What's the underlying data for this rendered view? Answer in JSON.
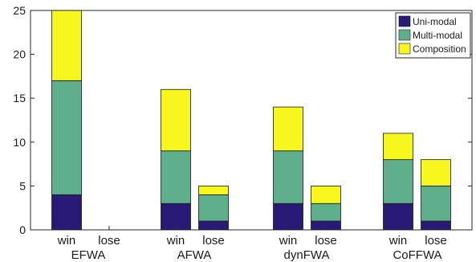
{
  "chart_data": {
    "type": "bar",
    "stacked": true,
    "groups": [
      "EFWA",
      "AFWA",
      "dynFWA",
      "CoFFWA"
    ],
    "categories": [
      "win",
      "lose",
      "win",
      "lose",
      "win",
      "lose",
      "win",
      "lose"
    ],
    "series": [
      {
        "name": "Uni-modal",
        "color": "#2a1a78",
        "values": [
          4,
          0,
          3,
          1,
          3,
          1,
          3,
          1
        ]
      },
      {
        "name": "Multi-modal",
        "color": "#5fae8c",
        "values": [
          13,
          0,
          6,
          3,
          6,
          2,
          5,
          4
        ]
      },
      {
        "name": "Composition",
        "color": "#f7f71e",
        "values": [
          8,
          0,
          7,
          1,
          5,
          2,
          3,
          3
        ]
      }
    ],
    "ylim": [
      0,
      25
    ],
    "yticks": [
      0,
      5,
      10,
      15,
      20,
      25
    ],
    "grid": false,
    "legend_position": "top-right"
  }
}
